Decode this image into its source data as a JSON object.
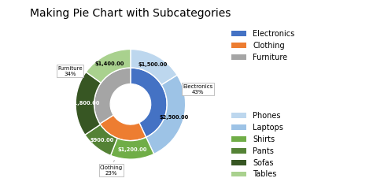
{
  "chart_data": {
    "type": "pie",
    "title": "Making Pie Chart with Subcategories",
    "series": [
      {
        "categories": [
          "Electronics",
          "Clothing",
          "Furniture"
        ],
        "values": [
          43,
          23,
          34
        ],
        "value_labels": [
          "Electronics\n43%",
          "Clothing\n23%",
          "Furniture\n34%"
        ],
        "colors": [
          "#4472C4",
          "#ED7D31",
          "#A5A5A5"
        ]
      },
      {
        "categories": [
          "Phones",
          "Laptops",
          "Shirts",
          "Pants",
          "Sofas",
          "Tables"
        ],
        "values": [
          1500,
          2500,
          1200,
          900,
          1800,
          1400
        ],
        "value_labels": [
          "$1,500.00",
          "$2,500.00",
          "$1,200.00",
          "$900.00",
          "$1,800.00",
          "$1,400.00"
        ],
        "colors": [
          "#BDD7EE",
          "#9DC3E6",
          "#70AD47",
          "#548235",
          "#375623",
          "#A9D18E"
        ]
      }
    ],
    "legend": "right"
  }
}
